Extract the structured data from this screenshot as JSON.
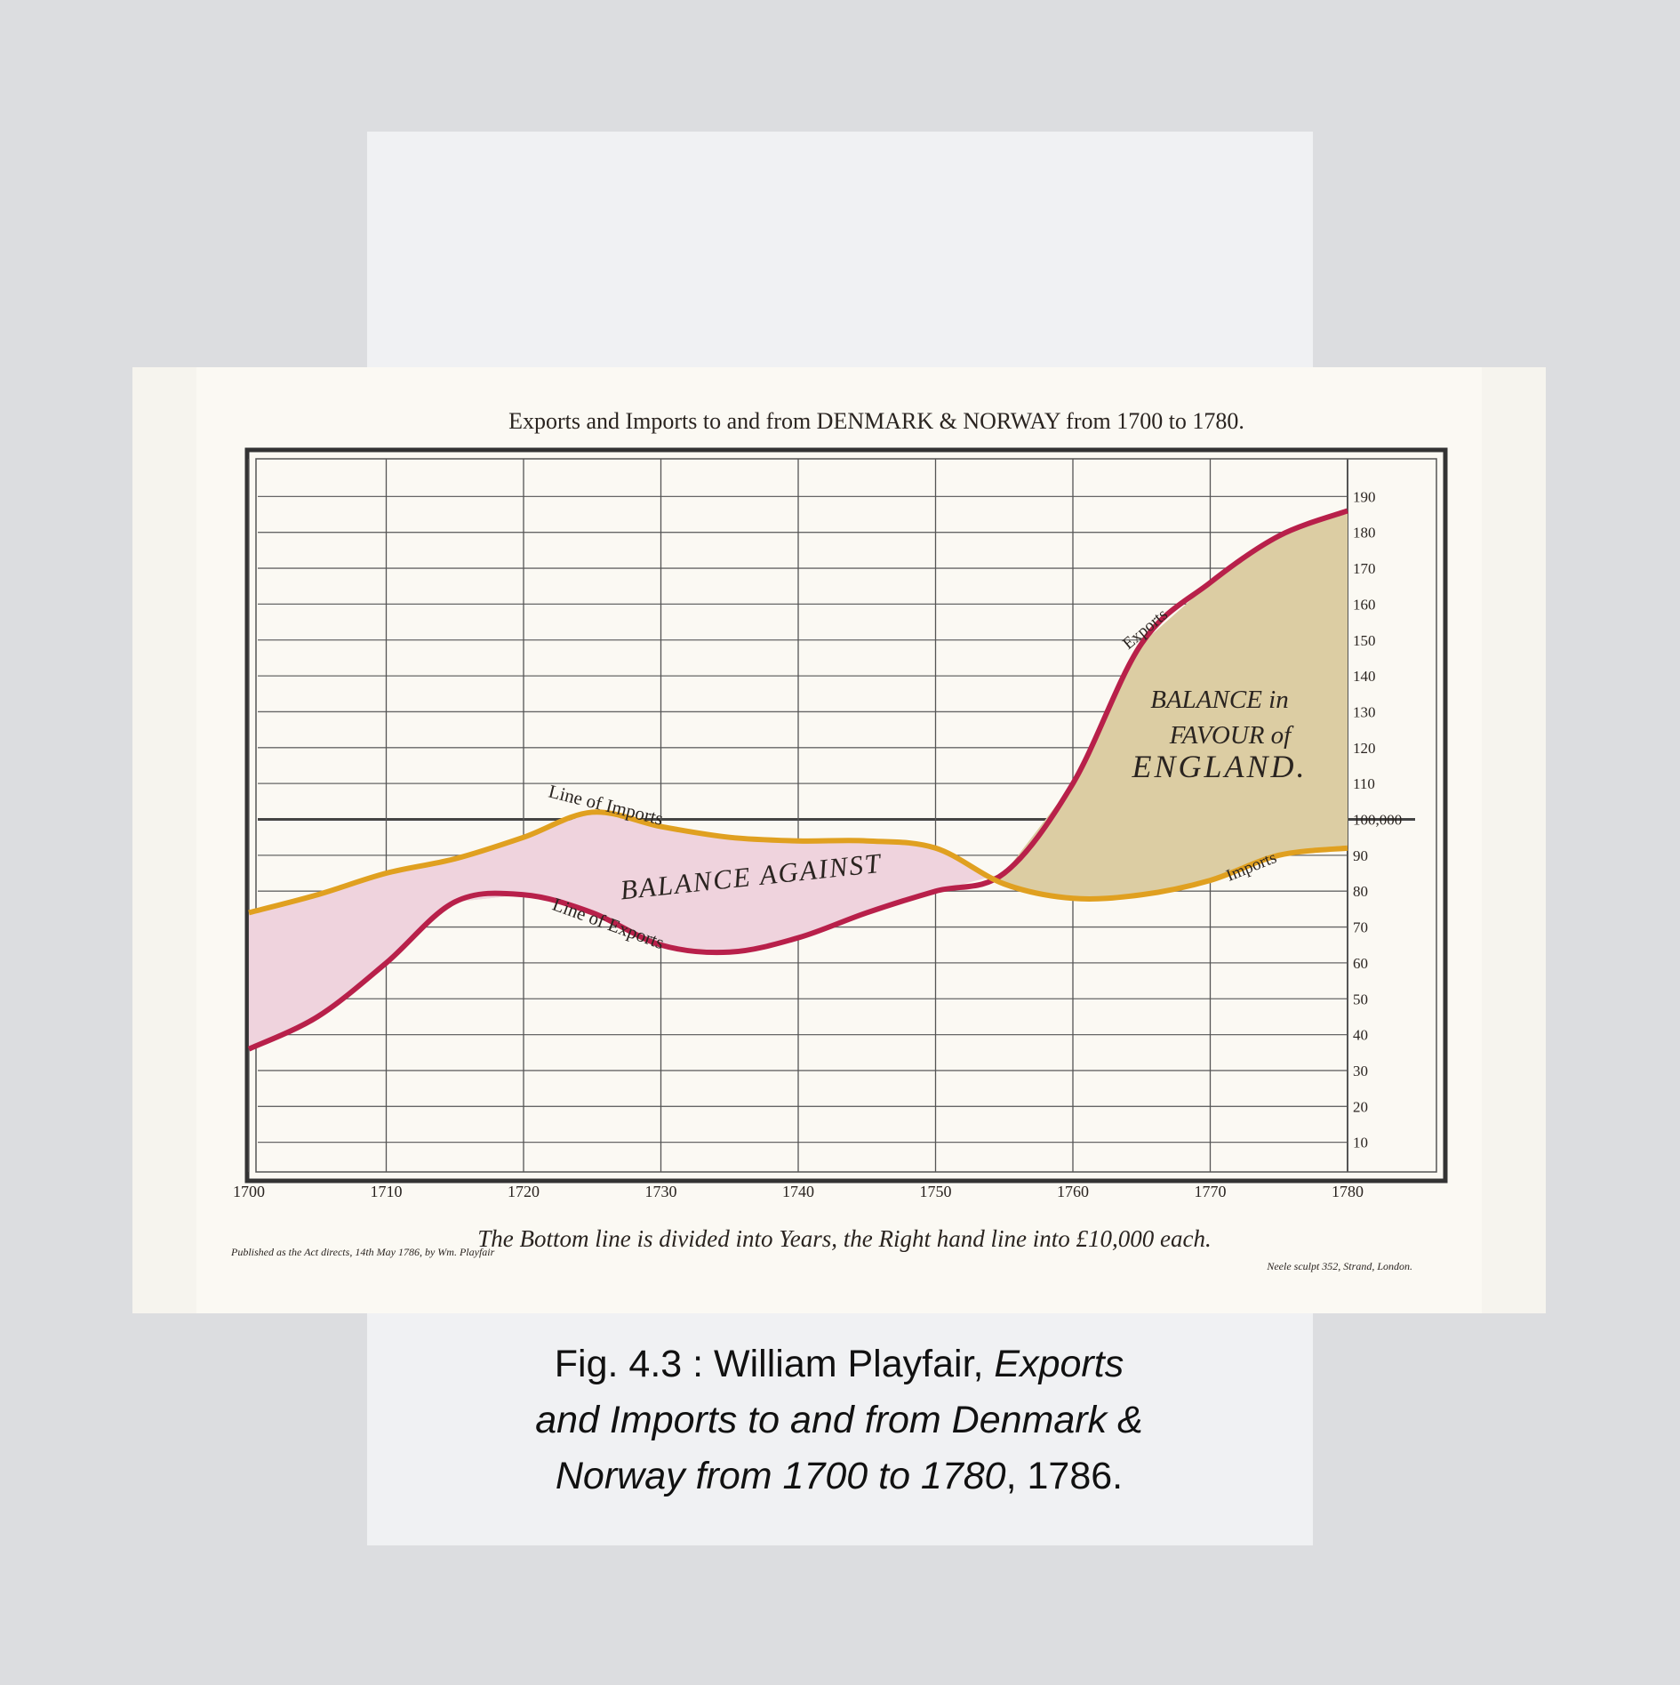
{
  "chart_data": {
    "type": "line",
    "title": "Exports and Imports to and from DENMARK & NORWAY from 1700 to 1780.",
    "x": [
      1700,
      1705,
      1710,
      1715,
      1720,
      1725,
      1730,
      1735,
      1740,
      1745,
      1750,
      1755,
      1760,
      1765,
      1770,
      1775,
      1780
    ],
    "series": [
      {
        "name": "Exports",
        "color": "#b8204a",
        "values": [
          36,
          45,
          60,
          77,
          79,
          74,
          65,
          63,
          67,
          74,
          80,
          85,
          110,
          149,
          166,
          179,
          186
        ]
      },
      {
        "name": "Imports",
        "color": "#e0a020",
        "values": [
          74,
          79,
          85,
          89,
          95,
          102,
          98,
          95,
          94,
          94,
          92,
          82,
          78,
          79,
          83,
          90,
          92
        ]
      }
    ],
    "xlim": [
      1700,
      1780
    ],
    "xticks": [
      1700,
      1710,
      1720,
      1730,
      1740,
      1750,
      1760,
      1770,
      1780
    ],
    "ylim": [
      0,
      200
    ],
    "yticks": [
      10,
      20,
      30,
      40,
      50,
      60,
      70,
      80,
      90,
      {
        "value": 100,
        "label": "100,000"
      },
      110,
      120,
      130,
      140,
      150,
      160,
      170,
      180,
      190
    ],
    "grid": true,
    "annotations": [
      "Line of Imports",
      "Line of Exports",
      "BALANCE AGAINST",
      "BALANCE in",
      "FAVOUR of",
      "ENGLAND."
    ],
    "note": "The Bottom line is divided into Years, the Right hand line into £10,000 each.",
    "imprint": "Published as the Act directs, 14th May 1786, by Wm. Playfair",
    "engraver": "Neele sculpt 352, Strand, London."
  },
  "caption": {
    "prefix": "Fig. 4.3 : William Playfair,",
    "title_line1": "Exports",
    "title_line2": "and Imports to and from Denmark &",
    "title_line3": "Norway from 1700 to 1780",
    "suffix": ", 1786."
  }
}
